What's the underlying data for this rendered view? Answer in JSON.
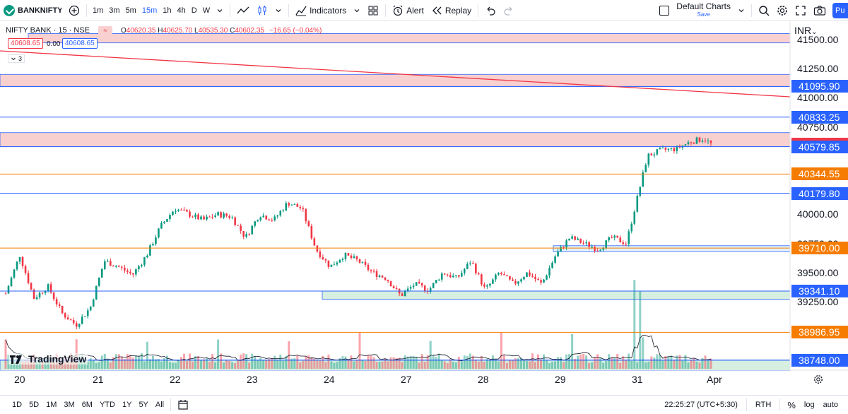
{
  "toolbar": {
    "symbol": "BANKNIFTY",
    "timeframes": [
      "1m",
      "3m",
      "5m",
      "15m",
      "1h",
      "4h",
      "D",
      "W"
    ],
    "active_timeframe": "15m",
    "indicators_label": "Indicators",
    "alert_label": "Alert",
    "replay_label": "Replay",
    "layout_name": "Default Charts",
    "layout_status": "Save",
    "publish_label": "Pu"
  },
  "legend": {
    "title": "NIFTY BANK · 15 · NSE",
    "o_label": "O",
    "o": "40620.35",
    "h_label": "H",
    "h": "40625.70",
    "l_label": "L",
    "l": "40535.30",
    "c_label": "C",
    "c": "40602.35",
    "change": "−16.65 (−0.04%)",
    "bid": "40608.65",
    "spread": "0.00",
    "ask": "40608.65",
    "indicator_count": "3"
  },
  "price_axis": {
    "currency": "INR",
    "ticks": [
      "41500.00",
      "41250.00",
      "41000.00",
      "40750.00",
      "40000.00",
      "39750.00",
      "39500.00",
      "39250.00"
    ]
  },
  "price_labels": [
    {
      "value": "41095.90",
      "color": "#2962ff"
    },
    {
      "value": "40833.25",
      "color": "#2962ff"
    },
    {
      "value": "40602.35",
      "color": "#f23645"
    },
    {
      "value": "40579.85",
      "color": "#2962ff"
    },
    {
      "value": "40344.55",
      "color": "#f57c00"
    },
    {
      "value": "40179.80",
      "color": "#2962ff"
    },
    {
      "value": "39710.00",
      "color": "#f57c00"
    },
    {
      "value": "39341.10",
      "color": "#2962ff"
    },
    {
      "value": "38986.95",
      "color": "#f57c00"
    },
    {
      "value": "38748.00",
      "color": "#2962ff"
    }
  ],
  "date_axis": [
    "20",
    "21",
    "22",
    "23",
    "24",
    "27",
    "28",
    "29",
    "31",
    "Apr"
  ],
  "bottom": {
    "ranges": [
      "1D",
      "5D",
      "1M",
      "3M",
      "6M",
      "YTD",
      "1Y",
      "5Y",
      "All"
    ],
    "time": "22:25:27 (UTC+5:30)",
    "session": "RTH",
    "percent": "%",
    "log": "log",
    "auto": "auto"
  },
  "brand": "TradingView",
  "chart_data": {
    "type": "candlestick",
    "x": [
      "20",
      "21",
      "22",
      "23",
      "24",
      "27",
      "28",
      "29",
      "31",
      "Apr"
    ],
    "close_path": [
      [
        0,
        39320
      ],
      [
        2,
        39650
      ],
      [
        4,
        39280
      ],
      [
        6,
        39380
      ],
      [
        8,
        39150
      ],
      [
        10,
        39050
      ],
      [
        12,
        39200
      ],
      [
        14,
        39600
      ],
      [
        16,
        39550
      ],
      [
        18,
        39480
      ],
      [
        20,
        39650
      ],
      [
        22,
        39900
      ],
      [
        24,
        40050
      ],
      [
        26,
        40000
      ],
      [
        28,
        39950
      ],
      [
        30,
        40000
      ],
      [
        32,
        39980
      ],
      [
        34,
        39800
      ],
      [
        36,
        40000
      ],
      [
        38,
        39950
      ],
      [
        40,
        40100
      ],
      [
        42,
        40050
      ],
      [
        44,
        39700
      ],
      [
        46,
        39550
      ],
      [
        48,
        39650
      ],
      [
        50,
        39600
      ],
      [
        52,
        39500
      ],
      [
        54,
        39450
      ],
      [
        56,
        39300
      ],
      [
        58,
        39400
      ],
      [
        60,
        39350
      ],
      [
        62,
        39500
      ],
      [
        64,
        39450
      ],
      [
        66,
        39600
      ],
      [
        68,
        39350
      ],
      [
        70,
        39500
      ],
      [
        72,
        39400
      ],
      [
        74,
        39500
      ],
      [
        76,
        39400
      ],
      [
        78,
        39650
      ],
      [
        80,
        39800
      ],
      [
        82,
        39750
      ],
      [
        84,
        39700
      ],
      [
        86,
        39800
      ],
      [
        88,
        39750
      ],
      [
        89,
        40000
      ],
      [
        90,
        40250
      ],
      [
        91,
        40500
      ],
      [
        93,
        40550
      ],
      [
        95,
        40560
      ],
      [
        97,
        40620
      ],
      [
        99,
        40650
      ],
      [
        100,
        40602
      ]
    ],
    "volume_note": "volume histogram with moving-average line",
    "levels": [
      "41095.90",
      "40833.25",
      "40579.85",
      "40344.55",
      "40179.80",
      "39710.00",
      "39341.10",
      "38986.95",
      "38748.00"
    ],
    "ylim": [
      38650,
      41650
    ]
  }
}
